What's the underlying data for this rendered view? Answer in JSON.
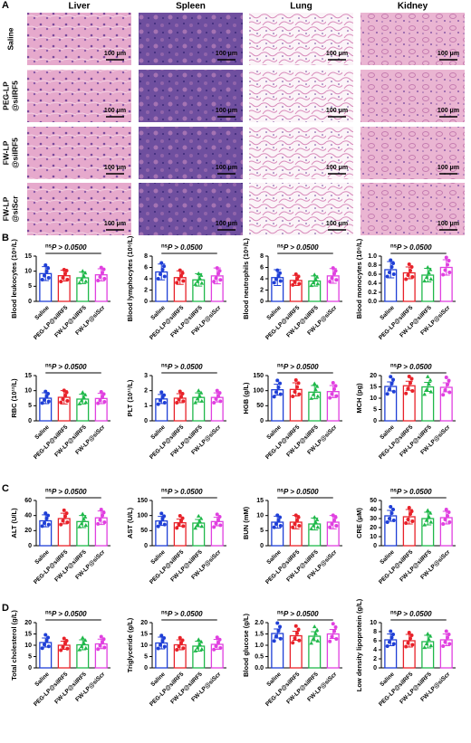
{
  "panel_labels": [
    "A",
    "B",
    "C",
    "D"
  ],
  "histology": {
    "columns": [
      "Liver",
      "Spleen",
      "Lung",
      "Kidney"
    ],
    "rows": [
      [
        "Saline"
      ],
      [
        "PEG-LP",
        "@siIRF5"
      ],
      [
        "FW-LP",
        "@siIRF5"
      ],
      [
        "FW-LP",
        "@siScr"
      ]
    ],
    "scale_bar": "100 μm"
  },
  "chart_data": [
    {
      "type": "bar",
      "y_label": "Blood leukocytes (10⁹/L)",
      "categories": [
        "Saline",
        "PEG-LP@siIRF5",
        "FW-LP@siIRF5",
        "FW-LP@siScr"
      ],
      "colors": [
        "#1f3fd6",
        "#e8222a",
        "#1fb84a",
        "#e040e0"
      ],
      "values": [
        9.2,
        8.5,
        7.8,
        8.8
      ],
      "errors": [
        2.3,
        1.8,
        1.9,
        2
      ],
      "points": [
        [
          7.2,
          11,
          8.5,
          9.9,
          12,
          7.8
        ],
        [
          6.6,
          10.2,
          7.8,
          9.2,
          10.5,
          7.2
        ],
        [
          6.1,
          9.4,
          7.2,
          8.4,
          10,
          6.6
        ],
        [
          6.9,
          10.6,
          8.1,
          9.5,
          11.2,
          7.5
        ]
      ],
      "ylim": [
        0,
        15
      ],
      "yticks": [
        0,
        5,
        10,
        15
      ],
      "significance": "ns",
      "p_text": "P > 0.0500"
    },
    {
      "type": "bar",
      "y_label": "Blood lymphocytes (10⁹/L)",
      "categories": [
        "Saline",
        "PEG-LP@siIRF5",
        "FW-LP@siIRF5",
        "FW-LP@siScr"
      ],
      "colors": [
        "#1f3fd6",
        "#e8222a",
        "#1fb84a",
        "#e040e0"
      ],
      "values": [
        5.2,
        4.2,
        3.8,
        4.5
      ],
      "errors": [
        1.4,
        1.2,
        1.1,
        1.4
      ],
      "points": [
        [
          4,
          6.2,
          4.8,
          5.6,
          6.8,
          4.4
        ],
        [
          3.3,
          5,
          3.9,
          4.5,
          5.5,
          3.6
        ],
        [
          3,
          4.6,
          3.5,
          4.1,
          4.9,
          3.2
        ],
        [
          3.5,
          5.4,
          4.1,
          4.9,
          5.9,
          3.8
        ]
      ],
      "ylim": [
        0,
        8
      ],
      "yticks": [
        0,
        2,
        4,
        6,
        8
      ],
      "significance": "ns",
      "p_text": "P > 0.0500"
    },
    {
      "type": "bar",
      "y_label": "Blood neutrophils (10⁹/L)",
      "categories": [
        "Saline",
        "PEG-LP@siIRF5",
        "FW-LP@siIRF5",
        "FW-LP@siScr"
      ],
      "colors": [
        "#1f3fd6",
        "#e8222a",
        "#1fb84a",
        "#e040e0"
      ],
      "values": [
        4.2,
        3.7,
        3.6,
        4.5
      ],
      "errors": [
        1.4,
        0.9,
        0.9,
        1.3
      ],
      "points": [
        [
          3.3,
          5,
          3.9,
          4.5,
          5.5,
          3.6
        ],
        [
          2.9,
          4.4,
          3.4,
          4,
          4.8,
          3.1
        ],
        [
          2.8,
          4.3,
          3.3,
          3.9,
          4.7,
          3.1
        ],
        [
          3.5,
          5.4,
          4.1,
          4.9,
          5.9,
          3.8
        ]
      ],
      "ylim": [
        0,
        8
      ],
      "yticks": [
        0,
        2,
        4,
        6,
        8
      ],
      "significance": "ns",
      "p_text": "P > 0.0500"
    },
    {
      "type": "bar",
      "y_label": "Blood monocytes (10⁹/L)",
      "categories": [
        "Saline",
        "PEG-LP@siIRF5",
        "FW-LP@siIRF5",
        "FW-LP@siScr"
      ],
      "colors": [
        "#1f3fd6",
        "#e8222a",
        "#1fb84a",
        "#e040e0"
      ],
      "values": [
        0.7,
        0.63,
        0.58,
        0.75
      ],
      "errors": [
        0.18,
        0.13,
        0.15,
        0.17
      ],
      "points": [
        [
          0.55,
          0.84,
          0.64,
          0.76,
          0.91,
          0.6
        ],
        [
          0.49,
          0.76,
          0.58,
          0.68,
          0.82,
          0.54
        ],
        [
          0.45,
          0.7,
          0.53,
          0.63,
          0.75,
          0.49
        ],
        [
          0.59,
          0.9,
          0.69,
          0.81,
          0.97,
          0.64
        ]
      ],
      "ylim": [
        0,
        1
      ],
      "yticks": [
        {
          "value": 0,
          "label": "0.0"
        },
        {
          "value": 0.2,
          "label": "0.2"
        },
        {
          "value": 0.4,
          "label": "0.4"
        },
        {
          "value": 0.6,
          "label": "0.6"
        },
        {
          "value": 0.8,
          "label": "0.8"
        },
        {
          "value": 1,
          "label": "1.0"
        }
      ],
      "significance": "ns",
      "p_text": "P > 0.0500"
    },
    {
      "type": "bar",
      "y_label": "RBC (10¹²/L)",
      "categories": [
        "Saline",
        "PEG-LP@siIRF5",
        "FW-LP@siIRF5",
        "FW-LP@siScr"
      ],
      "colors": [
        "#1f3fd6",
        "#e8222a",
        "#1fb84a",
        "#e040e0"
      ],
      "values": [
        7.5,
        7.8,
        7.2,
        7.4
      ],
      "errors": [
        1.8,
        2.2,
        1.6,
        1.7
      ],
      "points": [
        [
          5.9,
          9,
          6.9,
          8.1,
          9.7,
          6.4
        ],
        [
          6.1,
          9.4,
          7.2,
          8.4,
          10.1,
          6.6
        ],
        [
          5.6,
          8.6,
          6.6,
          7.8,
          9.4,
          6.1
        ],
        [
          5.8,
          8.9,
          6.8,
          8,
          9.6,
          6.3
        ]
      ],
      "ylim": [
        0,
        15
      ],
      "yticks": [
        0,
        5,
        10,
        15
      ],
      "significance": "ns",
      "p_text": "P > 0.0500"
    },
    {
      "type": "bar",
      "y_label": "PLT (10¹¹/L)",
      "categories": [
        "Saline",
        "PEG-LP@siIRF5",
        "FW-LP@siIRF5",
        "FW-LP@siScr"
      ],
      "colors": [
        "#1f3fd6",
        "#e8222a",
        "#1fb84a",
        "#e040e0"
      ],
      "values": [
        1.45,
        1.5,
        1.55,
        1.55
      ],
      "errors": [
        0.3,
        0.3,
        0.3,
        0.3
      ],
      "points": [
        [
          1.1,
          1.7,
          1.35,
          1.55,
          1.9,
          1.2
        ],
        [
          1.2,
          1.8,
          1.4,
          1.6,
          1.95,
          1.3
        ],
        [
          1.2,
          1.85,
          1.45,
          1.65,
          2,
          1.3
        ],
        [
          1.2,
          1.85,
          1.45,
          1.65,
          2,
          1.3
        ]
      ],
      "ylim": [
        0,
        3
      ],
      "yticks": [
        0,
        1,
        2,
        3
      ],
      "significance": "ns",
      "p_text": "P > 0.0500"
    },
    {
      "type": "bar",
      "y_label": "HGB (g/L)",
      "categories": [
        "Saline",
        "PEG-LP@siIRF5",
        "FW-LP@siIRF5",
        "FW-LP@siScr"
      ],
      "colors": [
        "#1f3fd6",
        "#e8222a",
        "#1fb84a",
        "#e040e0"
      ],
      "values": [
        103,
        104,
        95,
        97
      ],
      "errors": [
        18,
        22,
        22,
        20
      ],
      "points": [
        [
          80,
          124,
          95,
          111,
          134,
          88
        ],
        [
          81,
          125,
          96,
          112,
          135,
          88
        ],
        [
          74,
          114,
          87,
          103,
          123,
          81
        ],
        [
          76,
          116,
          89,
          105,
          126,
          82
        ]
      ],
      "ylim": [
        0,
        150
      ],
      "yticks": [
        0,
        50,
        100,
        150
      ],
      "significance": "ns",
      "p_text": "P > 0.0500"
    },
    {
      "type": "bar",
      "y_label": "MCH (pg)",
      "categories": [
        "Saline",
        "PEG-LP@siIRF5",
        "FW-LP@siIRF5",
        "FW-LP@siScr"
      ],
      "colors": [
        "#1f3fd6",
        "#e8222a",
        "#1fb84a",
        "#e040e0"
      ],
      "values": [
        15.2,
        15.5,
        15,
        14.8
      ],
      "errors": [
        2,
        2,
        2,
        2
      ],
      "points": [
        [
          11.9,
          18.2,
          14,
          16.4,
          19.5,
          12.9
        ],
        [
          12.1,
          18.6,
          14.3,
          16.7,
          19.6,
          13.2
        ],
        [
          11.7,
          18,
          13.8,
          16.2,
          19.5,
          12.8
        ],
        [
          11.5,
          17.8,
          13.6,
          16,
          19.2,
          12.6
        ]
      ],
      "ylim": [
        0,
        20
      ],
      "yticks": [
        0,
        5,
        10,
        15,
        20
      ],
      "significance": "ns",
      "p_text": "P > 0.0500"
    },
    {
      "type": "bar",
      "y_label": "ALT (U/L)",
      "categories": [
        "Saline",
        "PEG-LP@siIRF5",
        "FW-LP@siIRF5",
        "FW-LP@siScr"
      ],
      "colors": [
        "#1f3fd6",
        "#e8222a",
        "#1fb84a",
        "#e040e0"
      ],
      "values": [
        33,
        36,
        32,
        37
      ],
      "errors": [
        8,
        7,
        8,
        9
      ],
      "points": [
        [
          26,
          40,
          30,
          36,
          43,
          28
        ],
        [
          28,
          43,
          33,
          39,
          47,
          31
        ],
        [
          25,
          38,
          29,
          35,
          42,
          27
        ],
        [
          29,
          44,
          34,
          40,
          48,
          31
        ]
      ],
      "ylim": [
        0,
        60
      ],
      "yticks": [
        0,
        20,
        40,
        60
      ],
      "significance": "ns",
      "p_text": "P > 0.0500"
    },
    {
      "type": "bar",
      "y_label": "AST (U/L)",
      "categories": [
        "Saline",
        "PEG-LP@siIRF5",
        "FW-LP@siIRF5",
        "FW-LP@siScr"
      ],
      "colors": [
        "#1f3fd6",
        "#e8222a",
        "#1fb84a",
        "#e040e0"
      ],
      "values": [
        82,
        76,
        75,
        80
      ],
      "errors": [
        15,
        12,
        12,
        14
      ],
      "points": [
        [
          64,
          98,
          75,
          89,
          107,
          70
        ],
        [
          59,
          91,
          70,
          82,
          99,
          65
        ],
        [
          58,
          90,
          69,
          81,
          98,
          64
        ],
        [
          62,
          96,
          74,
          86,
          104,
          68
        ]
      ],
      "ylim": [
        0,
        150
      ],
      "yticks": [
        0,
        50,
        100,
        150
      ],
      "significance": "ns",
      "p_text": "P > 0.0500"
    },
    {
      "type": "bar",
      "y_label": "BUN (mM)",
      "categories": [
        "Saline",
        "PEG-LP@siIRF5",
        "FW-LP@siIRF5",
        "FW-LP@siScr"
      ],
      "colors": [
        "#1f3fd6",
        "#e8222a",
        "#1fb84a",
        "#e040e0"
      ],
      "values": [
        7.8,
        7.8,
        7.2,
        7.8
      ],
      "errors": [
        2,
        2.2,
        2,
        2.2
      ],
      "points": [
        [
          6.1,
          9.4,
          7.2,
          8.4,
          10.1,
          6.6
        ],
        [
          6.1,
          9.4,
          7.2,
          8.4,
          10.1,
          6.6
        ],
        [
          5.6,
          8.6,
          6.6,
          7.8,
          9.4,
          6.1
        ],
        [
          6.1,
          9.4,
          7.2,
          8.4,
          10.1,
          6.6
        ]
      ],
      "ylim": [
        0,
        15
      ],
      "yticks": [
        0,
        5,
        10,
        15
      ],
      "significance": "ns",
      "p_text": "P > 0.0500"
    },
    {
      "type": "bar",
      "y_label": "CRE (μM)",
      "categories": [
        "Saline",
        "PEG-LP@siIRF5",
        "FW-LP@siIRF5",
        "FW-LP@siScr"
      ],
      "colors": [
        "#1f3fd6",
        "#e8222a",
        "#1fb84a",
        "#e040e0"
      ],
      "values": [
        33,
        32,
        30,
        31
      ],
      "errors": [
        6,
        8,
        7,
        7
      ],
      "points": [
        [
          26,
          40,
          30,
          36,
          43,
          28
        ],
        [
          25,
          38,
          29,
          35,
          42,
          27
        ],
        [
          23,
          36,
          28,
          32,
          39,
          26
        ],
        [
          24,
          37,
          29,
          33,
          40,
          26
        ]
      ],
      "ylim": [
        0,
        50
      ],
      "yticks": [
        0,
        10,
        20,
        30,
        40,
        50
      ],
      "significance": "ns",
      "p_text": "P > 0.0500"
    },
    {
      "type": "bar",
      "y_label": "Total cholesterol (g/L)",
      "categories": [
        "Saline",
        "PEG-LP@siIRF5",
        "FW-LP@siIRF5",
        "FW-LP@siScr"
      ],
      "colors": [
        "#1f3fd6",
        "#e8222a",
        "#1fb84a",
        "#e040e0"
      ],
      "values": [
        11.2,
        10,
        10.2,
        10.6
      ],
      "errors": [
        2,
        1.8,
        2.2,
        2.1
      ],
      "points": [
        [
          8.7,
          13.4,
          10.3,
          12.1,
          14.6,
          9.5
        ],
        [
          7.8,
          12,
          9.2,
          10.8,
          13,
          8.5
        ],
        [
          8,
          12.2,
          9.4,
          11,
          13.3,
          8.7
        ],
        [
          8.3,
          12.7,
          9.8,
          11.4,
          13.8,
          9
        ]
      ],
      "ylim": [
        0,
        20
      ],
      "yticks": [
        0,
        5,
        10,
        15,
        20
      ],
      "significance": "ns",
      "p_text": "P > 0.0500"
    },
    {
      "type": "bar",
      "y_label": "Triglyceride (g/L)",
      "categories": [
        "Saline",
        "PEG-LP@siIRF5",
        "FW-LP@siIRF5",
        "FW-LP@siScr"
      ],
      "colors": [
        "#1f3fd6",
        "#e8222a",
        "#1fb84a",
        "#e040e0"
      ],
      "values": [
        11,
        10.2,
        9.6,
        10.4
      ],
      "errors": [
        2.6,
        2.2,
        2.2,
        2.2
      ],
      "points": [
        [
          8.6,
          13.2,
          10.1,
          11.9,
          14.3,
          9.4
        ],
        [
          8,
          12.2,
          9.4,
          11,
          13.3,
          8.7
        ],
        [
          7.5,
          11.5,
          8.8,
          10.4,
          12.5,
          8.2
        ],
        [
          8.1,
          12.5,
          9.6,
          11.2,
          13.5,
          8.8
        ]
      ],
      "ylim": [
        0,
        20
      ],
      "yticks": [
        0,
        5,
        10,
        15,
        20
      ],
      "significance": "ns",
      "p_text": "P > 0.0500"
    },
    {
      "type": "bar",
      "y_label": "Blood glucose (g/L)",
      "categories": [
        "Saline",
        "PEG-LP@siIRF5",
        "FW-LP@siIRF5",
        "FW-LP@siScr"
      ],
      "colors": [
        "#1f3fd6",
        "#e8222a",
        "#1fb84a",
        "#e040e0"
      ],
      "values": [
        1.52,
        1.42,
        1.4,
        1.5
      ],
      "errors": [
        0.2,
        0.2,
        0.2,
        0.2
      ],
      "points": [
        [
          1.19,
          1.82,
          1.4,
          1.64,
          1.98,
          1.29
        ],
        [
          1.11,
          1.7,
          1.31,
          1.53,
          1.85,
          1.21
        ],
        [
          1.09,
          1.68,
          1.29,
          1.51,
          1.82,
          1.19
        ],
        [
          1.17,
          1.8,
          1.38,
          1.62,
          1.95,
          1.28
        ]
      ],
      "ylim": [
        0,
        2
      ],
      "yticks": [
        {
          "value": 0,
          "label": "0.0"
        },
        {
          "value": 0.5,
          "label": "0.5"
        },
        {
          "value": 1,
          "label": "1.0"
        },
        {
          "value": 1.5,
          "label": "1.5"
        },
        {
          "value": 2,
          "label": "2.0"
        }
      ],
      "significance": "ns",
      "p_text": "P > 0.0500"
    },
    {
      "type": "bar",
      "y_label": "Low density lipoprotein (g/L)",
      "categories": [
        "Saline",
        "PEG-LP@siIRF5",
        "FW-LP@siIRF5",
        "FW-LP@siScr"
      ],
      "colors": [
        "#1f3fd6",
        "#e8222a",
        "#1fb84a",
        "#e040e0"
      ],
      "values": [
        6.2,
        6,
        5.8,
        6.2
      ],
      "errors": [
        1.3,
        1.4,
        1.4,
        1.3
      ],
      "points": [
        [
          4.8,
          7.4,
          5.7,
          6.7,
          8.1,
          5.3
        ],
        [
          4.7,
          7.2,
          5.5,
          6.5,
          7.8,
          5.1
        ],
        [
          4.5,
          7,
          5.3,
          6.3,
          7.5,
          4.9
        ],
        [
          4.8,
          7.4,
          5.7,
          6.7,
          8.1,
          5.3
        ]
      ],
      "ylim": [
        0,
        10
      ],
      "yticks": [
        0,
        2,
        4,
        6,
        8,
        10
      ],
      "significance": "ns",
      "p_text": "P > 0.0500"
    }
  ]
}
